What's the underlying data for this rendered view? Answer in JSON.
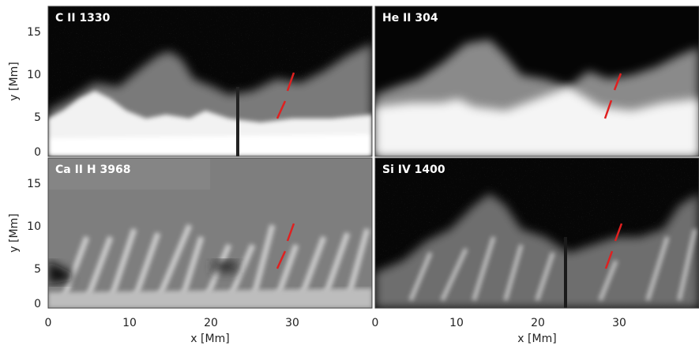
{
  "panels": [
    {
      "id": "c2",
      "label": "C II 1330"
    },
    {
      "id": "he2",
      "label": "He II 304"
    },
    {
      "id": "ca2",
      "label": "Ca II H 3968"
    },
    {
      "id": "si4",
      "label": "Si IV 1400"
    }
  ],
  "axes": {
    "xlabel": "x [Mm]",
    "ylabel": "y [Mm]",
    "xticks": [
      "0",
      "10",
      "20",
      "30"
    ],
    "yticks": [
      "0",
      "5",
      "10",
      "15"
    ]
  },
  "colors": {
    "marker": "#e02020",
    "background": "#000000",
    "foreground": "#ffffff"
  }
}
